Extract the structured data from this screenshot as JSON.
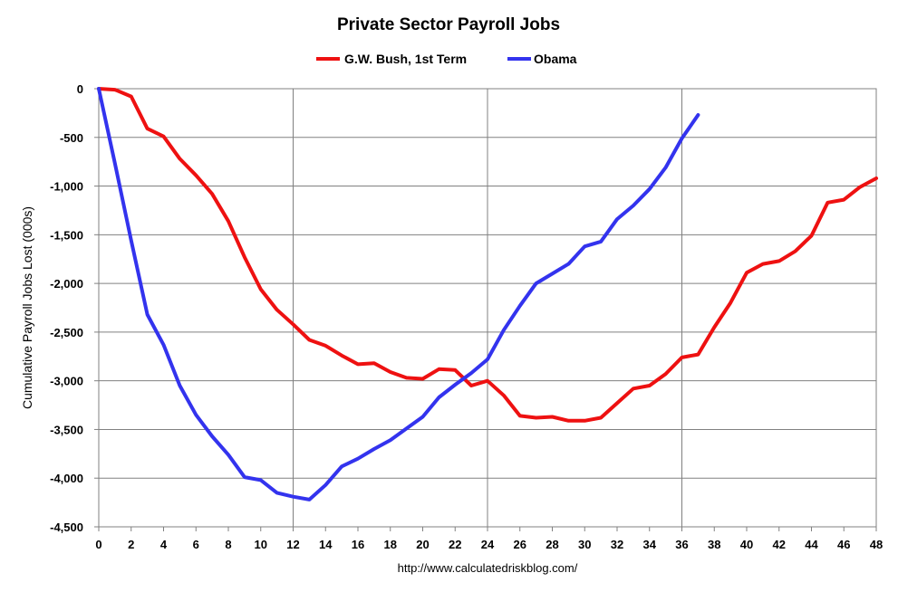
{
  "chart_data": {
    "type": "line",
    "title": "Private Sector Payroll Jobs",
    "xlabel": "",
    "ylabel": "Cumulative Payroll Jobs Lost (000s)",
    "source": "http://www.calculatedriskblog.com/",
    "xlim": [
      0,
      48
    ],
    "ylim": [
      -4500,
      0
    ],
    "x_ticks": [
      0,
      2,
      4,
      6,
      8,
      10,
      12,
      14,
      16,
      18,
      20,
      22,
      24,
      26,
      28,
      30,
      32,
      34,
      36,
      38,
      40,
      42,
      44,
      46,
      48
    ],
    "x_tick_labels": [
      "0",
      "2",
      "4",
      "6",
      "8",
      "10",
      "12",
      "14",
      "16",
      "18",
      "20",
      "22",
      "24",
      "26",
      "28",
      "30",
      "32",
      "34",
      "36",
      "38",
      "40",
      "42",
      "44",
      "46",
      "48"
    ],
    "y_ticks": [
      0,
      -500,
      -1000,
      -1500,
      -2000,
      -2500,
      -3000,
      -3500,
      -4000,
      -4500
    ],
    "y_tick_labels": [
      "0",
      "-500",
      "-1,000",
      "-1,500",
      "-2,000",
      "-2,500",
      "-3,000",
      "-3,500",
      "-4,000",
      "-4,500"
    ],
    "x_gridlines": [
      12,
      24,
      36
    ],
    "legend_position": "top-center",
    "series": [
      {
        "name": "G.W. Bush, 1st Term",
        "color": "#ee1111",
        "x": [
          0,
          1,
          2,
          3,
          4,
          5,
          6,
          7,
          8,
          9,
          10,
          11,
          12,
          13,
          14,
          15,
          16,
          17,
          18,
          19,
          20,
          21,
          22,
          23,
          24,
          25,
          26,
          27,
          28,
          29,
          30,
          31,
          32,
          33,
          34,
          35,
          36,
          37,
          38,
          39,
          40,
          41,
          42,
          43,
          44,
          45,
          46,
          47,
          48
        ],
        "values": [
          0,
          -10,
          -80,
          -410,
          -490,
          -720,
          -890,
          -1080,
          -1360,
          -1730,
          -2060,
          -2270,
          -2420,
          -2580,
          -2640,
          -2740,
          -2830,
          -2820,
          -2910,
          -2970,
          -2980,
          -2880,
          -2890,
          -3050,
          -3000,
          -3150,
          -3360,
          -3380,
          -3370,
          -3410,
          -3410,
          -3380,
          -3230,
          -3080,
          -3050,
          -2930,
          -2760,
          -2730,
          -2450,
          -2200,
          -1890,
          -1800,
          -1770,
          -1670,
          -1510,
          -1170,
          -1140,
          -1010,
          -920
        ]
      },
      {
        "name": "Obama",
        "color": "#3333ee",
        "x": [
          0,
          1,
          2,
          3,
          4,
          5,
          6,
          7,
          8,
          9,
          10,
          11,
          12,
          13,
          14,
          15,
          16,
          17,
          18,
          19,
          20,
          21,
          22,
          23,
          24,
          25,
          26,
          27,
          28,
          29,
          30,
          31,
          32,
          33,
          34,
          35,
          36,
          37
        ],
        "values": [
          0,
          -770,
          -1560,
          -2320,
          -2630,
          -3050,
          -3350,
          -3570,
          -3760,
          -3990,
          -4020,
          -4150,
          -4190,
          -4220,
          -4070,
          -3880,
          -3800,
          -3700,
          -3610,
          -3490,
          -3370,
          -3170,
          -3040,
          -2920,
          -2780,
          -2480,
          -2230,
          -2000,
          -1900,
          -1800,
          -1620,
          -1570,
          -1340,
          -1200,
          -1030,
          -810,
          -510,
          -270
        ]
      }
    ]
  }
}
